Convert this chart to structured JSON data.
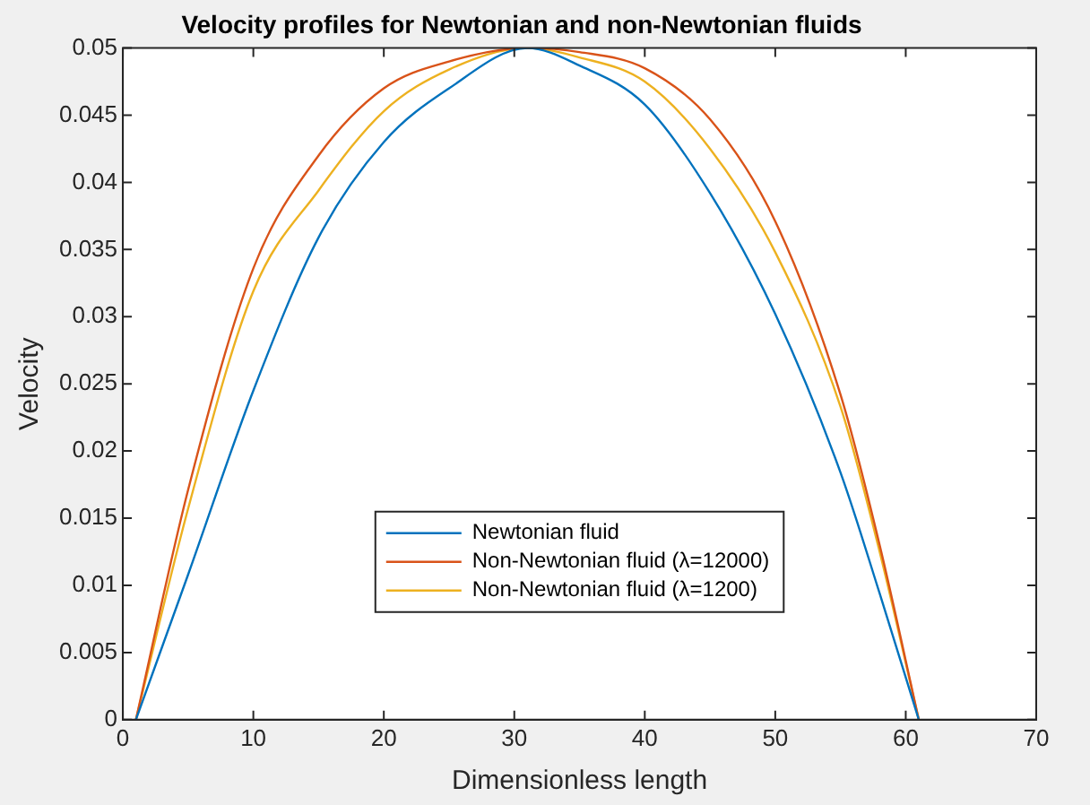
{
  "chart_data": {
    "type": "line",
    "title": "Velocity profiles for Newtonian and non-Newtonian fluids",
    "xlabel": "Dimensionless length",
    "ylabel": "Velocity",
    "xlim": [
      0,
      70
    ],
    "xticks": [
      0,
      10,
      20,
      30,
      40,
      50,
      60,
      70
    ],
    "ylim": [
      0,
      0.05
    ],
    "yticks": [
      0,
      0.005,
      0.01,
      0.015,
      0.02,
      0.025,
      0.03,
      0.035,
      0.04,
      0.045,
      0.05
    ],
    "grid": false,
    "legend": "bottom",
    "marker": "none",
    "line_style": "solid",
    "x": [
      1,
      5,
      10,
      15,
      20,
      25,
      31,
      35,
      40,
      45,
      50,
      55,
      58,
      61
    ],
    "series": [
      {
        "name": "Newtonian fluid",
        "color": "#0072bd",
        "values": [
          0,
          0.0108,
          0.0245,
          0.0359,
          0.043,
          0.047,
          0.05,
          0.0487,
          0.0458,
          0.0392,
          0.0302,
          0.0184,
          0.0094,
          0
        ]
      },
      {
        "name": "Non-Newtonian fluid (λ=12000)",
        "color": "#d95319",
        "values": [
          0,
          0.0171,
          0.0336,
          0.042,
          0.047,
          0.049,
          0.05,
          0.0497,
          0.0485,
          0.0447,
          0.0371,
          0.0242,
          0.013,
          0
        ]
      },
      {
        "name": "Non-Newtonian fluid (λ=1200)",
        "color": "#edb120",
        "values": [
          0,
          0.0157,
          0.0319,
          0.0394,
          0.0453,
          0.0484,
          0.05,
          0.0493,
          0.0475,
          0.0425,
          0.0348,
          0.0233,
          0.0125,
          0
        ]
      }
    ]
  }
}
